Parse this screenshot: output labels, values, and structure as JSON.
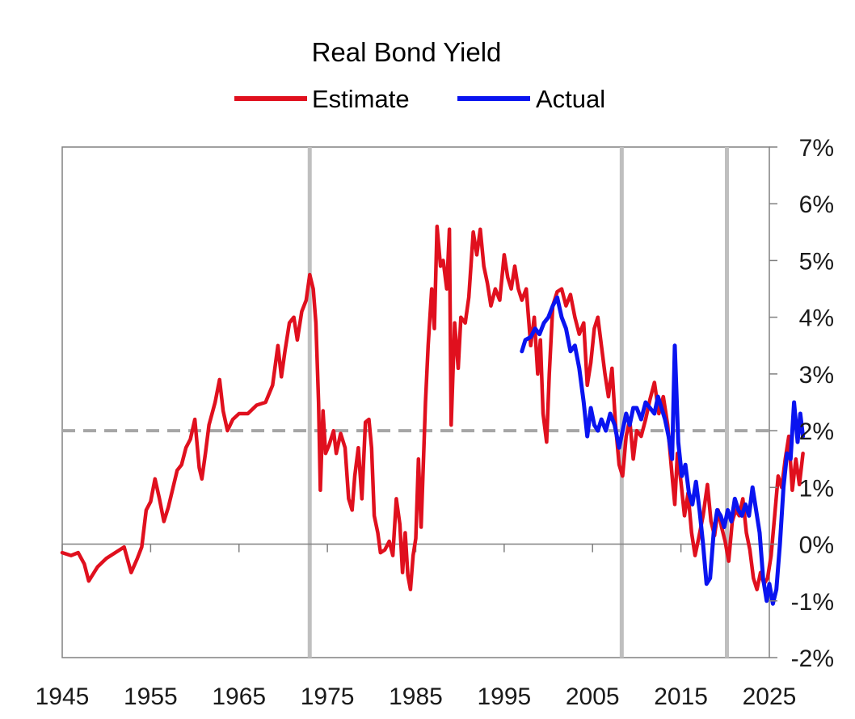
{
  "chart_data": {
    "type": "line",
    "title": "Real Bond Yield",
    "xlabel": "",
    "ylabel": "",
    "xlim": [
      1945,
      2025
    ],
    "ylim": [
      -2,
      7
    ],
    "x_ticks": [
      1945,
      1955,
      1965,
      1975,
      1985,
      1995,
      2005,
      2015,
      2025
    ],
    "x_tick_labels": [
      "1945",
      "1955",
      "1965",
      "1975",
      "1985",
      "1995",
      "2005",
      "2015",
      "2025"
    ],
    "y_ticks": [
      -2,
      -1,
      0,
      1,
      2,
      3,
      4,
      5,
      6,
      7
    ],
    "y_tick_labels": [
      "-2%",
      "-1%",
      "0%",
      "1%",
      "2%",
      "3%",
      "4%",
      "5%",
      "6%",
      "7%"
    ],
    "y_axis_side": "right",
    "grid": false,
    "legend_position": "top-center",
    "reference_lines": [
      {
        "type": "horizontal",
        "y": 2,
        "style": "dashed",
        "color": "#a6a6a6"
      },
      {
        "type": "vertical",
        "x": 1973,
        "color": "#bfbfbf"
      },
      {
        "type": "vertical",
        "x": 2008.3,
        "color": "#bfbfbf"
      },
      {
        "type": "vertical",
        "x": 2020.2,
        "color": "#bfbfbf"
      }
    ],
    "series": [
      {
        "name": "Estimate",
        "color": "#e0101e",
        "points": [
          [
            1945,
            -0.15
          ],
          [
            1946,
            -0.2
          ],
          [
            1946.8,
            -0.15
          ],
          [
            1947.5,
            -0.35
          ],
          [
            1948,
            -0.65
          ],
          [
            1949,
            -0.4
          ],
          [
            1950,
            -0.25
          ],
          [
            1951,
            -0.15
          ],
          [
            1952,
            -0.05
          ],
          [
            1952.8,
            -0.5
          ],
          [
            1953.5,
            -0.25
          ],
          [
            1954,
            -0.05
          ],
          [
            1954.5,
            0.6
          ],
          [
            1955,
            0.75
          ],
          [
            1955.5,
            1.15
          ],
          [
            1956,
            0.8
          ],
          [
            1956.5,
            0.4
          ],
          [
            1957,
            0.65
          ],
          [
            1958,
            1.3
          ],
          [
            1958.5,
            1.4
          ],
          [
            1959,
            1.7
          ],
          [
            1959.5,
            1.85
          ],
          [
            1960,
            2.2
          ],
          [
            1960.5,
            1.35
          ],
          [
            1960.8,
            1.15
          ],
          [
            1961.2,
            1.6
          ],
          [
            1961.6,
            2.1
          ],
          [
            1962.3,
            2.5
          ],
          [
            1962.8,
            2.9
          ],
          [
            1963.2,
            2.35
          ],
          [
            1963.7,
            2.0
          ],
          [
            1964.3,
            2.2
          ],
          [
            1965,
            2.3
          ],
          [
            1966,
            2.3
          ],
          [
            1967,
            2.45
          ],
          [
            1968,
            2.5
          ],
          [
            1968.8,
            2.8
          ],
          [
            1969.4,
            3.5
          ],
          [
            1969.8,
            2.95
          ],
          [
            1970.2,
            3.4
          ],
          [
            1970.7,
            3.9
          ],
          [
            1971.2,
            4.0
          ],
          [
            1971.6,
            3.6
          ],
          [
            1972.1,
            4.1
          ],
          [
            1972.6,
            4.3
          ],
          [
            1973.0,
            4.75
          ],
          [
            1973.4,
            4.5
          ],
          [
            1973.7,
            3.9
          ],
          [
            1974.0,
            2.5
          ],
          [
            1974.2,
            0.95
          ],
          [
            1974.5,
            2.35
          ],
          [
            1974.8,
            1.6
          ],
          [
            1975.2,
            1.75
          ],
          [
            1975.7,
            2.0
          ],
          [
            1976.0,
            1.6
          ],
          [
            1976.5,
            1.95
          ],
          [
            1977.0,
            1.7
          ],
          [
            1977.4,
            0.8
          ],
          [
            1977.8,
            0.6
          ],
          [
            1978.1,
            1.2
          ],
          [
            1978.5,
            1.7
          ],
          [
            1978.9,
            0.8
          ],
          [
            1979.3,
            2.15
          ],
          [
            1979.7,
            2.2
          ],
          [
            1980.0,
            1.7
          ],
          [
            1980.3,
            0.5
          ],
          [
            1980.7,
            0.2
          ],
          [
            1981.0,
            -0.15
          ],
          [
            1981.5,
            -0.1
          ],
          [
            1982.0,
            0.05
          ],
          [
            1982.4,
            -0.2
          ],
          [
            1982.8,
            0.8
          ],
          [
            1983.2,
            0.35
          ],
          [
            1983.5,
            -0.5
          ],
          [
            1983.8,
            0.2
          ],
          [
            1984.1,
            -0.55
          ],
          [
            1984.4,
            -0.8
          ],
          [
            1984.7,
            -0.2
          ],
          [
            1985.0,
            0.1
          ],
          [
            1985.3,
            1.5
          ],
          [
            1985.6,
            0.3
          ],
          [
            1985.9,
            1.6
          ],
          [
            1986.1,
            2.5
          ],
          [
            1986.4,
            3.5
          ],
          [
            1986.8,
            4.5
          ],
          [
            1987.1,
            3.8
          ],
          [
            1987.4,
            5.6
          ],
          [
            1987.8,
            4.9
          ],
          [
            1988.1,
            5.0
          ],
          [
            1988.5,
            4.5
          ],
          [
            1988.8,
            5.55
          ],
          [
            1989.0,
            2.1
          ],
          [
            1989.4,
            3.9
          ],
          [
            1989.8,
            3.1
          ],
          [
            1990.1,
            4.0
          ],
          [
            1990.6,
            3.9
          ],
          [
            1991.0,
            4.35
          ],
          [
            1991.5,
            5.5
          ],
          [
            1991.9,
            5.1
          ],
          [
            1992.3,
            5.55
          ],
          [
            1992.7,
            4.9
          ],
          [
            1993.1,
            4.6
          ],
          [
            1993.5,
            4.2
          ],
          [
            1994.0,
            4.5
          ],
          [
            1994.5,
            4.3
          ],
          [
            1995.0,
            5.1
          ],
          [
            1995.4,
            4.7
          ],
          [
            1995.8,
            4.5
          ],
          [
            1996.2,
            4.9
          ],
          [
            1996.6,
            4.5
          ],
          [
            1997.0,
            4.3
          ],
          [
            1997.5,
            4.5
          ],
          [
            1998.0,
            3.5
          ],
          [
            1998.4,
            4.0
          ],
          [
            1998.8,
            3.0
          ],
          [
            1999.1,
            3.6
          ],
          [
            1999.4,
            2.3
          ],
          [
            1999.8,
            1.8
          ],
          [
            2000.1,
            3.0
          ],
          [
            2000.5,
            4.2
          ],
          [
            2001.0,
            4.45
          ],
          [
            2001.5,
            4.5
          ],
          [
            2002.0,
            4.2
          ],
          [
            2002.5,
            4.4
          ],
          [
            2003.0,
            4.0
          ],
          [
            2003.5,
            3.7
          ],
          [
            2004.0,
            3.9
          ],
          [
            2004.4,
            2.8
          ],
          [
            2004.8,
            3.2
          ],
          [
            2005.2,
            3.8
          ],
          [
            2005.6,
            4.0
          ],
          [
            2006.0,
            3.5
          ],
          [
            2006.4,
            3.0
          ],
          [
            2006.8,
            2.6
          ],
          [
            2007.2,
            3.1
          ],
          [
            2007.6,
            2.1
          ],
          [
            2008.0,
            1.4
          ],
          [
            2008.4,
            1.2
          ],
          [
            2008.8,
            1.9
          ],
          [
            2009.2,
            2.2
          ],
          [
            2009.6,
            1.5
          ],
          [
            2010.0,
            2.0
          ],
          [
            2010.5,
            1.9
          ],
          [
            2011.0,
            2.2
          ],
          [
            2011.5,
            2.55
          ],
          [
            2012.0,
            2.85
          ],
          [
            2012.5,
            2.3
          ],
          [
            2013.0,
            2.6
          ],
          [
            2013.5,
            2.1
          ],
          [
            2014.0,
            1.2
          ],
          [
            2014.3,
            0.7
          ],
          [
            2014.6,
            1.6
          ],
          [
            2015.0,
            1.1
          ],
          [
            2015.4,
            0.5
          ],
          [
            2015.8,
            0.9
          ],
          [
            2016.2,
            0.2
          ],
          [
            2016.6,
            -0.2
          ],
          [
            2017.0,
            0.1
          ],
          [
            2017.5,
            0.5
          ],
          [
            2018.0,
            1.05
          ],
          [
            2018.4,
            0.4
          ],
          [
            2018.8,
            0.15
          ],
          [
            2019.2,
            0.6
          ],
          [
            2019.6,
            0.3
          ],
          [
            2020.0,
            0.05
          ],
          [
            2020.4,
            -0.3
          ],
          [
            2020.8,
            0.4
          ],
          [
            2021.2,
            0.6
          ],
          [
            2021.6,
            0.5
          ],
          [
            2022.0,
            0.8
          ],
          [
            2022.4,
            0.2
          ],
          [
            2022.8,
            -0.1
          ],
          [
            2023.2,
            -0.6
          ],
          [
            2023.6,
            -0.8
          ],
          [
            2024.0,
            -0.5
          ],
          [
            2024.4,
            -0.7
          ],
          [
            2024.8,
            -0.6
          ],
          [
            2025.2,
            -0.2
          ],
          [
            2025.6,
            0.5
          ],
          [
            2026.0,
            1.2
          ],
          [
            2026.4,
            1.0
          ],
          [
            2026.8,
            1.5
          ],
          [
            2027.2,
            1.9
          ],
          [
            2027.6,
            0.95
          ],
          [
            2028.0,
            1.5
          ],
          [
            2028.4,
            1.05
          ],
          [
            2028.8,
            1.6
          ]
        ]
      },
      {
        "name": "Actual",
        "color": "#0a14f0",
        "points": [
          [
            1997.0,
            3.4
          ],
          [
            1997.4,
            3.6
          ],
          [
            1998.0,
            3.65
          ],
          [
            1998.5,
            3.8
          ],
          [
            1999.0,
            3.7
          ],
          [
            1999.5,
            3.9
          ],
          [
            2000.0,
            4.0
          ],
          [
            2000.5,
            4.2
          ],
          [
            2001.0,
            4.35
          ],
          [
            2001.5,
            4.0
          ],
          [
            2002.0,
            3.8
          ],
          [
            2002.5,
            3.4
          ],
          [
            2003.0,
            3.5
          ],
          [
            2003.5,
            3.1
          ],
          [
            2004.0,
            2.5
          ],
          [
            2004.4,
            1.9
          ],
          [
            2004.8,
            2.4
          ],
          [
            2005.2,
            2.1
          ],
          [
            2005.6,
            2.0
          ],
          [
            2006.0,
            2.2
          ],
          [
            2006.5,
            2.0
          ],
          [
            2007.0,
            2.3
          ],
          [
            2007.5,
            2.1
          ],
          [
            2008.0,
            1.7
          ],
          [
            2008.4,
            2.0
          ],
          [
            2008.8,
            2.3
          ],
          [
            2009.2,
            2.1
          ],
          [
            2009.6,
            2.4
          ],
          [
            2010.0,
            2.4
          ],
          [
            2010.5,
            2.2
          ],
          [
            2011.0,
            2.5
          ],
          [
            2011.5,
            2.4
          ],
          [
            2012.0,
            2.3
          ],
          [
            2012.4,
            2.6
          ],
          [
            2012.8,
            2.4
          ],
          [
            2013.2,
            2.2
          ],
          [
            2013.6,
            1.9
          ],
          [
            2014.0,
            1.5
          ],
          [
            2014.3,
            3.5
          ],
          [
            2014.7,
            1.8
          ],
          [
            2015.1,
            1.2
          ],
          [
            2015.5,
            1.4
          ],
          [
            2015.9,
            0.9
          ],
          [
            2016.3,
            0.7
          ],
          [
            2016.7,
            1.1
          ],
          [
            2017.1,
            0.6
          ],
          [
            2017.5,
            0.0
          ],
          [
            2017.9,
            -0.7
          ],
          [
            2018.3,
            -0.6
          ],
          [
            2018.7,
            0.2
          ],
          [
            2019.1,
            0.6
          ],
          [
            2019.5,
            0.5
          ],
          [
            2019.9,
            0.3
          ],
          [
            2020.3,
            0.6
          ],
          [
            2020.7,
            0.4
          ],
          [
            2021.1,
            0.8
          ],
          [
            2021.5,
            0.6
          ],
          [
            2021.9,
            0.5
          ],
          [
            2022.3,
            0.7
          ],
          [
            2022.7,
            0.5
          ],
          [
            2023.1,
            1.0
          ],
          [
            2023.5,
            0.6
          ],
          [
            2023.9,
            0.2
          ],
          [
            2024.3,
            -0.6
          ],
          [
            2024.7,
            -1.0
          ],
          [
            2025.0,
            -0.7
          ],
          [
            2025.4,
            -1.05
          ],
          [
            2025.8,
            -0.8
          ],
          [
            2026.2,
            0.0
          ],
          [
            2026.6,
            1.0
          ],
          [
            2027.0,
            1.6
          ],
          [
            2027.4,
            1.5
          ],
          [
            2027.8,
            2.5
          ],
          [
            2028.2,
            1.8
          ],
          [
            2028.5,
            2.3
          ],
          [
            2028.8,
            1.9
          ]
        ]
      }
    ]
  }
}
